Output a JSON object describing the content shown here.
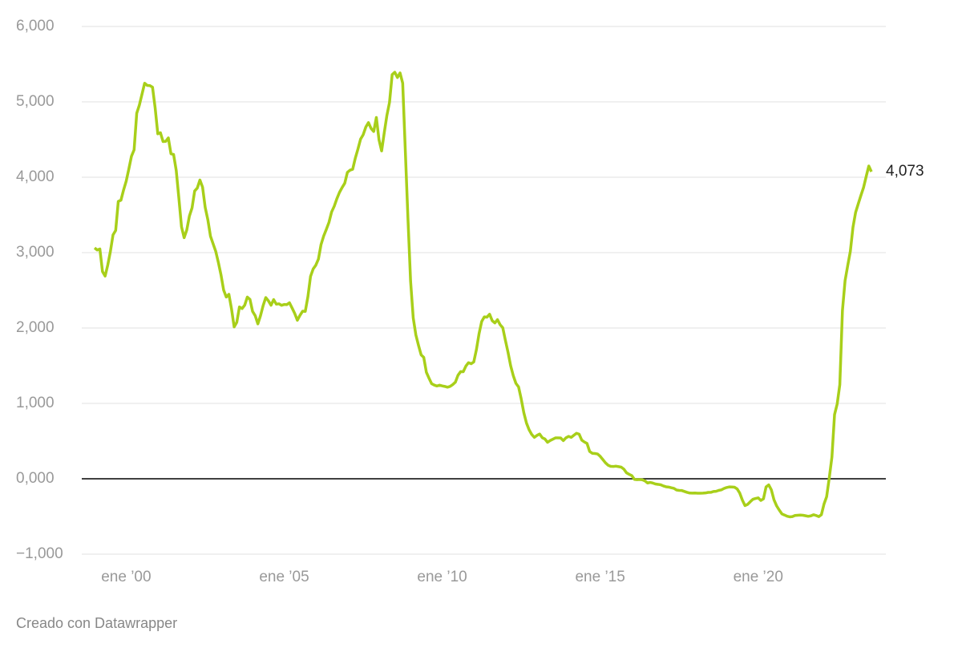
{
  "chart_data": {
    "type": "line",
    "color": "#a8cf1a",
    "grid": true,
    "ylim": [
      -1,
      6
    ],
    "yticks": [
      {
        "value": -1,
        "label": "−1,000"
      },
      {
        "value": 0,
        "label": "0,000"
      },
      {
        "value": 1,
        "label": "1,000"
      },
      {
        "value": 2,
        "label": "2,000"
      },
      {
        "value": 3,
        "label": "3,000"
      },
      {
        "value": 4,
        "label": "4,000"
      },
      {
        "value": 5,
        "label": "5,000"
      },
      {
        "value": 6,
        "label": "6,000"
      }
    ],
    "xlim": [
      "1999-01",
      "2023-08"
    ],
    "xticks": [
      {
        "value": "2000-01",
        "label": "ene ’00"
      },
      {
        "value": "2005-01",
        "label": "ene ’05"
      },
      {
        "value": "2010-01",
        "label": "ene ’10"
      },
      {
        "value": "2015-01",
        "label": "ene ’15"
      },
      {
        "value": "2020-01",
        "label": "ene ’20"
      }
    ],
    "x": [
      "1999-01",
      "1999-02",
      "1999-03",
      "1999-04",
      "1999-05",
      "1999-06",
      "1999-07",
      "1999-08",
      "1999-09",
      "1999-10",
      "1999-11",
      "1999-12",
      "2000-01",
      "2000-02",
      "2000-03",
      "2000-04",
      "2000-05",
      "2000-06",
      "2000-07",
      "2000-08",
      "2000-09",
      "2000-10",
      "2000-11",
      "2000-12",
      "2001-01",
      "2001-02",
      "2001-03",
      "2001-04",
      "2001-05",
      "2001-06",
      "2001-07",
      "2001-08",
      "2001-09",
      "2001-10",
      "2001-11",
      "2001-12",
      "2002-01",
      "2002-02",
      "2002-03",
      "2002-04",
      "2002-05",
      "2002-06",
      "2002-07",
      "2002-08",
      "2002-09",
      "2002-10",
      "2002-11",
      "2002-12",
      "2003-01",
      "2003-02",
      "2003-03",
      "2003-04",
      "2003-05",
      "2003-06",
      "2003-07",
      "2003-08",
      "2003-09",
      "2003-10",
      "2003-11",
      "2003-12",
      "2004-01",
      "2004-02",
      "2004-03",
      "2004-04",
      "2004-05",
      "2004-06",
      "2004-07",
      "2004-08",
      "2004-09",
      "2004-10",
      "2004-11",
      "2004-12",
      "2005-01",
      "2005-02",
      "2005-03",
      "2005-04",
      "2005-05",
      "2005-06",
      "2005-07",
      "2005-08",
      "2005-09",
      "2005-10",
      "2005-11",
      "2005-12",
      "2006-01",
      "2006-02",
      "2006-03",
      "2006-04",
      "2006-05",
      "2006-06",
      "2006-07",
      "2006-08",
      "2006-09",
      "2006-10",
      "2006-11",
      "2006-12",
      "2007-01",
      "2007-02",
      "2007-03",
      "2007-04",
      "2007-05",
      "2007-06",
      "2007-07",
      "2007-08",
      "2007-09",
      "2007-10",
      "2007-11",
      "2007-12",
      "2008-01",
      "2008-02",
      "2008-03",
      "2008-04",
      "2008-05",
      "2008-06",
      "2008-07",
      "2008-08",
      "2008-09",
      "2008-10",
      "2008-11",
      "2008-12",
      "2009-01",
      "2009-02",
      "2009-03",
      "2009-04",
      "2009-05",
      "2009-06",
      "2009-07",
      "2009-08",
      "2009-09",
      "2009-10",
      "2009-11",
      "2009-12",
      "2010-01",
      "2010-02",
      "2010-03",
      "2010-04",
      "2010-05",
      "2010-06",
      "2010-07",
      "2010-08",
      "2010-09",
      "2010-10",
      "2010-11",
      "2010-12",
      "2011-01",
      "2011-02",
      "2011-03",
      "2011-04",
      "2011-05",
      "2011-06",
      "2011-07",
      "2011-08",
      "2011-09",
      "2011-10",
      "2011-11",
      "2011-12",
      "2012-01",
      "2012-02",
      "2012-03",
      "2012-04",
      "2012-05",
      "2012-06",
      "2012-07",
      "2012-08",
      "2012-09",
      "2012-10",
      "2012-11",
      "2012-12",
      "2013-01",
      "2013-02",
      "2013-03",
      "2013-04",
      "2013-05",
      "2013-06",
      "2013-07",
      "2013-08",
      "2013-09",
      "2013-10",
      "2013-11",
      "2013-12",
      "2014-01",
      "2014-02",
      "2014-03",
      "2014-04",
      "2014-05",
      "2014-06",
      "2014-07",
      "2014-08",
      "2014-09",
      "2014-10",
      "2014-11",
      "2014-12",
      "2015-01",
      "2015-02",
      "2015-03",
      "2015-04",
      "2015-05",
      "2015-06",
      "2015-07",
      "2015-08",
      "2015-09",
      "2015-10",
      "2015-11",
      "2015-12",
      "2016-01",
      "2016-02",
      "2016-03",
      "2016-04",
      "2016-05",
      "2016-06",
      "2016-07",
      "2016-08",
      "2016-09",
      "2016-10",
      "2016-11",
      "2016-12",
      "2017-01",
      "2017-02",
      "2017-03",
      "2017-04",
      "2017-05",
      "2017-06",
      "2017-07",
      "2017-08",
      "2017-09",
      "2017-10",
      "2017-11",
      "2017-12",
      "2018-01",
      "2018-02",
      "2018-03",
      "2018-04",
      "2018-05",
      "2018-06",
      "2018-07",
      "2018-08",
      "2018-09",
      "2018-10",
      "2018-11",
      "2018-12",
      "2019-01",
      "2019-02",
      "2019-03",
      "2019-04",
      "2019-05",
      "2019-06",
      "2019-07",
      "2019-08",
      "2019-09",
      "2019-10",
      "2019-11",
      "2019-12",
      "2020-01",
      "2020-02",
      "2020-03",
      "2020-04",
      "2020-05",
      "2020-06",
      "2020-07",
      "2020-08",
      "2020-09",
      "2020-10",
      "2020-11",
      "2020-12",
      "2021-01",
      "2021-02",
      "2021-03",
      "2021-04",
      "2021-05",
      "2021-06",
      "2021-07",
      "2021-08",
      "2021-09",
      "2021-10",
      "2021-11",
      "2021-12",
      "2022-01",
      "2022-02",
      "2022-03",
      "2022-04",
      "2022-05",
      "2022-06",
      "2022-07",
      "2022-08",
      "2022-09",
      "2022-10",
      "2022-11",
      "2022-12",
      "2023-01",
      "2023-02",
      "2023-03",
      "2023-04",
      "2023-05",
      "2023-06",
      "2023-07",
      "2023-08"
    ],
    "values": [
      3.062,
      3.034,
      3.048,
      2.749,
      2.689,
      2.835,
      3.016,
      3.235,
      3.294,
      3.68,
      3.695,
      3.83,
      3.948,
      4.109,
      4.279,
      4.363,
      4.849,
      4.957,
      5.102,
      5.247,
      5.218,
      5.215,
      5.194,
      4.918,
      4.576,
      4.59,
      4.473,
      4.476,
      4.522,
      4.311,
      4.302,
      4.09,
      3.724,
      3.344,
      3.198,
      3.3,
      3.485,
      3.592,
      3.817,
      3.857,
      3.963,
      3.869,
      3.6,
      3.438,
      3.219,
      3.118,
      3.017,
      2.87,
      2.705,
      2.504,
      2.411,
      2.447,
      2.252,
      2.014,
      2.076,
      2.279,
      2.258,
      2.303,
      2.41,
      2.38,
      2.22,
      2.163,
      2.055,
      2.163,
      2.297,
      2.404,
      2.361,
      2.302,
      2.377,
      2.316,
      2.321,
      2.301,
      2.312,
      2.31,
      2.335,
      2.265,
      2.193,
      2.103,
      2.168,
      2.223,
      2.22,
      2.414,
      2.684,
      2.783,
      2.833,
      2.914,
      3.108,
      3.221,
      3.308,
      3.401,
      3.539,
      3.615,
      3.715,
      3.799,
      3.864,
      3.921,
      4.064,
      4.094,
      4.106,
      4.253,
      4.373,
      4.505,
      4.564,
      4.666,
      4.725,
      4.647,
      4.607,
      4.793,
      4.498,
      4.349,
      4.59,
      4.82,
      4.994,
      5.361,
      5.393,
      5.323,
      5.384,
      5.248,
      4.35,
      3.452,
      2.622,
      2.135,
      1.909,
      1.771,
      1.644,
      1.61,
      1.412,
      1.334,
      1.261,
      1.243,
      1.231,
      1.242,
      1.232,
      1.225,
      1.215,
      1.225,
      1.249,
      1.281,
      1.373,
      1.421,
      1.42,
      1.495,
      1.54,
      1.526,
      1.55,
      1.714,
      1.924,
      2.086,
      2.147,
      2.144,
      2.183,
      2.097,
      2.067,
      2.11,
      2.044,
      2.004,
      1.837,
      1.678,
      1.499,
      1.368,
      1.266,
      1.219,
      1.061,
      0.877,
      0.74,
      0.65,
      0.588,
      0.549,
      0.575,
      0.594,
      0.545,
      0.528,
      0.484,
      0.507,
      0.525,
      0.542,
      0.543,
      0.541,
      0.506,
      0.543,
      0.562,
      0.549,
      0.577,
      0.604,
      0.592,
      0.513,
      0.488,
      0.469,
      0.362,
      0.338,
      0.335,
      0.329,
      0.298,
      0.255,
      0.212,
      0.18,
      0.165,
      0.163,
      0.167,
      0.161,
      0.154,
      0.128,
      0.079,
      0.059,
      0.042,
      -0.008,
      -0.012,
      -0.01,
      -0.013,
      -0.028,
      -0.056,
      -0.048,
      -0.057,
      -0.069,
      -0.074,
      -0.08,
      -0.095,
      -0.106,
      -0.11,
      -0.119,
      -0.127,
      -0.149,
      -0.154,
      -0.156,
      -0.168,
      -0.18,
      -0.189,
      -0.19,
      -0.189,
      -0.191,
      -0.191,
      -0.19,
      -0.188,
      -0.181,
      -0.18,
      -0.169,
      -0.166,
      -0.154,
      -0.147,
      -0.129,
      -0.116,
      -0.108,
      -0.109,
      -0.112,
      -0.134,
      -0.19,
      -0.283,
      -0.356,
      -0.339,
      -0.304,
      -0.272,
      -0.261,
      -0.253,
      -0.288,
      -0.266,
      -0.108,
      -0.081,
      -0.147,
      -0.279,
      -0.359,
      -0.415,
      -0.466,
      -0.481,
      -0.497,
      -0.505,
      -0.501,
      -0.487,
      -0.484,
      -0.481,
      -0.484,
      -0.491,
      -0.498,
      -0.492,
      -0.477,
      -0.487,
      -0.502,
      -0.477,
      -0.335,
      -0.237,
      0.013,
      0.287,
      0.852,
      0.992,
      1.249,
      2.233,
      2.629,
      2.828,
      3.018,
      3.337,
      3.534,
      3.647,
      3.757,
      3.862,
      4.007,
      4.149,
      4.073
    ],
    "end_label": "4,073"
  },
  "footer": {
    "credit": "Creado con Datawrapper"
  }
}
